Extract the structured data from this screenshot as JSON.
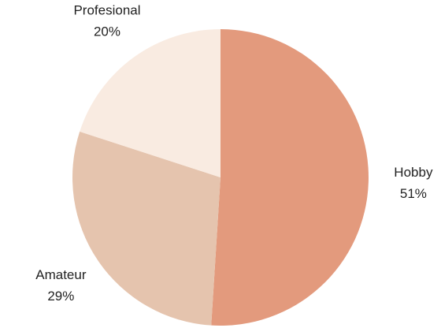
{
  "chart_data": {
    "type": "pie",
    "categories": [
      "Hobby",
      "Amateur",
      "Profesional"
    ],
    "values": [
      51,
      29,
      20
    ],
    "value_labels": [
      "51%",
      "29%",
      "20%"
    ],
    "colors": [
      "#e39a7d",
      "#e5c4ae",
      "#f9ebe1"
    ]
  }
}
